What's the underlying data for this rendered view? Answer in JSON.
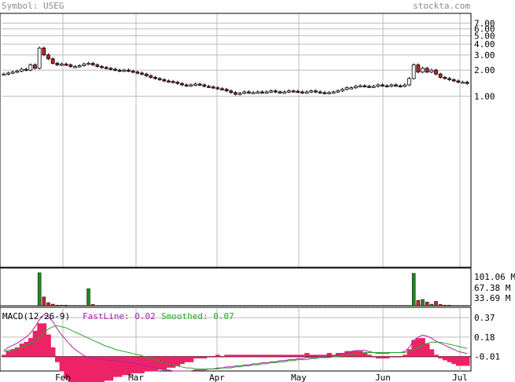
{
  "header": {
    "symbol_label": "Symbol: USEG",
    "site_label": "stockta.com"
  },
  "chart_data": [
    {
      "type": "candlestick",
      "title": "",
      "y_scale": "log",
      "y_ticks": [
        "7.00",
        "6.00",
        "5.00",
        "4.00",
        "3.00",
        "2.00",
        "1.00"
      ],
      "x_ticks": [
        "Feb",
        "Mar",
        "Apr",
        "May",
        "Jun",
        "Jul"
      ],
      "grid": true,
      "close": [
        1.8,
        1.85,
        1.9,
        1.95,
        2.05,
        2.0,
        2.3,
        2.1,
        3.6,
        3.0,
        2.7,
        2.4,
        2.3,
        2.35,
        2.3,
        2.2,
        2.2,
        2.25,
        2.35,
        2.4,
        2.3,
        2.2,
        2.15,
        2.1,
        2.05,
        2.0,
        1.95,
        2.0,
        1.95,
        1.9,
        1.85,
        1.8,
        1.72,
        1.65,
        1.6,
        1.55,
        1.5,
        1.48,
        1.45,
        1.4,
        1.35,
        1.32,
        1.35,
        1.38,
        1.35,
        1.3,
        1.28,
        1.25,
        1.22,
        1.2,
        1.15,
        1.1,
        1.05,
        1.08,
        1.12,
        1.1,
        1.1,
        1.12,
        1.1,
        1.12,
        1.15,
        1.12,
        1.1,
        1.12,
        1.15,
        1.14,
        1.12,
        1.1,
        1.12,
        1.15,
        1.12,
        1.1,
        1.08,
        1.1,
        1.12,
        1.15,
        1.2,
        1.25,
        1.25,
        1.3,
        1.32,
        1.3,
        1.28,
        1.3,
        1.35,
        1.32,
        1.3,
        1.35,
        1.32,
        1.3,
        1.35,
        1.6,
        2.3,
        1.9,
        2.1,
        1.9,
        2.0,
        1.8,
        1.65,
        1.6,
        1.55,
        1.5,
        1.45,
        1.45,
        1.4
      ]
    },
    {
      "type": "bar",
      "title": "",
      "y_ticks": [
        "101.06 M",
        "67.38 M",
        "33.69 M"
      ],
      "ylim": [
        0,
        120
      ],
      "series": [
        {
          "values": [
            0,
            0,
            0,
            0,
            0,
            0,
            0,
            0,
            105,
            28,
            10,
            5,
            2,
            2,
            2,
            1,
            1,
            1,
            1,
            54,
            4,
            1,
            1,
            1,
            1,
            1,
            1,
            1,
            1,
            1,
            1,
            1,
            1,
            1,
            1,
            1,
            1,
            1,
            1,
            1,
            1,
            1,
            1,
            1,
            1,
            1,
            1,
            1,
            1,
            1,
            1,
            1,
            1,
            1,
            1,
            1,
            1,
            1,
            1,
            1,
            1,
            1,
            1,
            1,
            1,
            1,
            1,
            1,
            1,
            1,
            1,
            1,
            1,
            1,
            1,
            1,
            1,
            1,
            1,
            1,
            1,
            1,
            1,
            1,
            1,
            1,
            1,
            1,
            1,
            1,
            1,
            1,
            103,
            17,
            20,
            12,
            5,
            14,
            4,
            2,
            2,
            1,
            1,
            1,
            1
          ]
        }
      ]
    },
    {
      "type": "line",
      "title": "",
      "labels": {
        "macd": "MACD(12-26-9)",
        "fast_prefix": "FastLine: ",
        "fast_value": "0.02",
        "smooth_prefix": "Smoothed: ",
        "smooth_value": "0.07"
      },
      "y_ticks": [
        "0.37",
        "0.18",
        "-0.01"
      ],
      "ylim": [
        -0.15,
        0.47
      ],
      "series": [
        {
          "name": "FastLine",
          "color": "#aa22aa",
          "values": [
            0.05,
            0.08,
            0.1,
            0.12,
            0.15,
            0.18,
            0.22,
            0.28,
            0.35,
            0.4,
            0.38,
            0.33,
            0.26,
            0.2,
            0.15,
            0.1,
            0.06,
            0.03,
            0.0,
            -0.02,
            -0.03,
            -0.03,
            -0.04,
            -0.04,
            -0.05,
            -0.05,
            -0.06,
            -0.06,
            -0.07,
            -0.07,
            -0.08,
            -0.09,
            -0.1,
            -0.11,
            -0.12,
            -0.13,
            -0.14,
            -0.14,
            -0.15,
            -0.15,
            -0.15,
            -0.15,
            -0.15,
            -0.14,
            -0.14,
            -0.14,
            -0.13,
            -0.13,
            -0.12,
            -0.12,
            -0.11,
            -0.11,
            -0.1,
            -0.1,
            -0.09,
            -0.09,
            -0.08,
            -0.08,
            -0.07,
            -0.07,
            -0.06,
            -0.06,
            -0.05,
            -0.05,
            -0.04,
            -0.04,
            -0.03,
            -0.03,
            -0.02,
            -0.02,
            -0.02,
            -0.01,
            -0.01,
            0.0,
            0.0,
            0.01,
            0.02,
            0.03,
            0.04,
            0.05,
            0.05,
            0.05,
            0.04,
            0.03,
            0.02,
            0.02,
            0.02,
            0.03,
            0.03,
            0.03,
            0.04,
            0.08,
            0.15,
            0.18,
            0.2,
            0.19,
            0.17,
            0.14,
            0.12,
            0.1,
            0.08,
            0.06,
            0.04,
            0.03,
            0.02
          ]
        },
        {
          "name": "Smoothed",
          "color": "#22aa22",
          "values": [
            0.04,
            0.05,
            0.06,
            0.07,
            0.08,
            0.1,
            0.12,
            0.14,
            0.17,
            0.22,
            0.26,
            0.28,
            0.29,
            0.28,
            0.27,
            0.25,
            0.23,
            0.21,
            0.19,
            0.17,
            0.15,
            0.13,
            0.11,
            0.09,
            0.08,
            0.06,
            0.05,
            0.04,
            0.03,
            0.02,
            0.01,
            0.0,
            -0.02,
            -0.03,
            -0.04,
            -0.06,
            -0.07,
            -0.08,
            -0.09,
            -0.1,
            -0.11,
            -0.12,
            -0.12,
            -0.13,
            -0.13,
            -0.13,
            -0.13,
            -0.13,
            -0.13,
            -0.12,
            -0.12,
            -0.12,
            -0.11,
            -0.11,
            -0.1,
            -0.1,
            -0.09,
            -0.09,
            -0.08,
            -0.08,
            -0.07,
            -0.07,
            -0.06,
            -0.06,
            -0.05,
            -0.05,
            -0.04,
            -0.04,
            -0.04,
            -0.03,
            -0.03,
            -0.02,
            -0.02,
            -0.02,
            -0.01,
            -0.01,
            0.0,
            0.0,
            0.01,
            0.02,
            0.02,
            0.03,
            0.03,
            0.03,
            0.03,
            0.03,
            0.03,
            0.03,
            0.03,
            0.03,
            0.03,
            0.04,
            0.06,
            0.08,
            0.1,
            0.12,
            0.13,
            0.13,
            0.13,
            0.12,
            0.11,
            0.1,
            0.09,
            0.08,
            0.07
          ]
        }
      ]
    }
  ],
  "colors": {
    "up": "#ffffff",
    "down": "#cc2222",
    "volume": "#228822",
    "volume_down": "#cc2222",
    "hist": "#ee2266",
    "grid": "#bbbbbb",
    "frame": "#000000"
  }
}
